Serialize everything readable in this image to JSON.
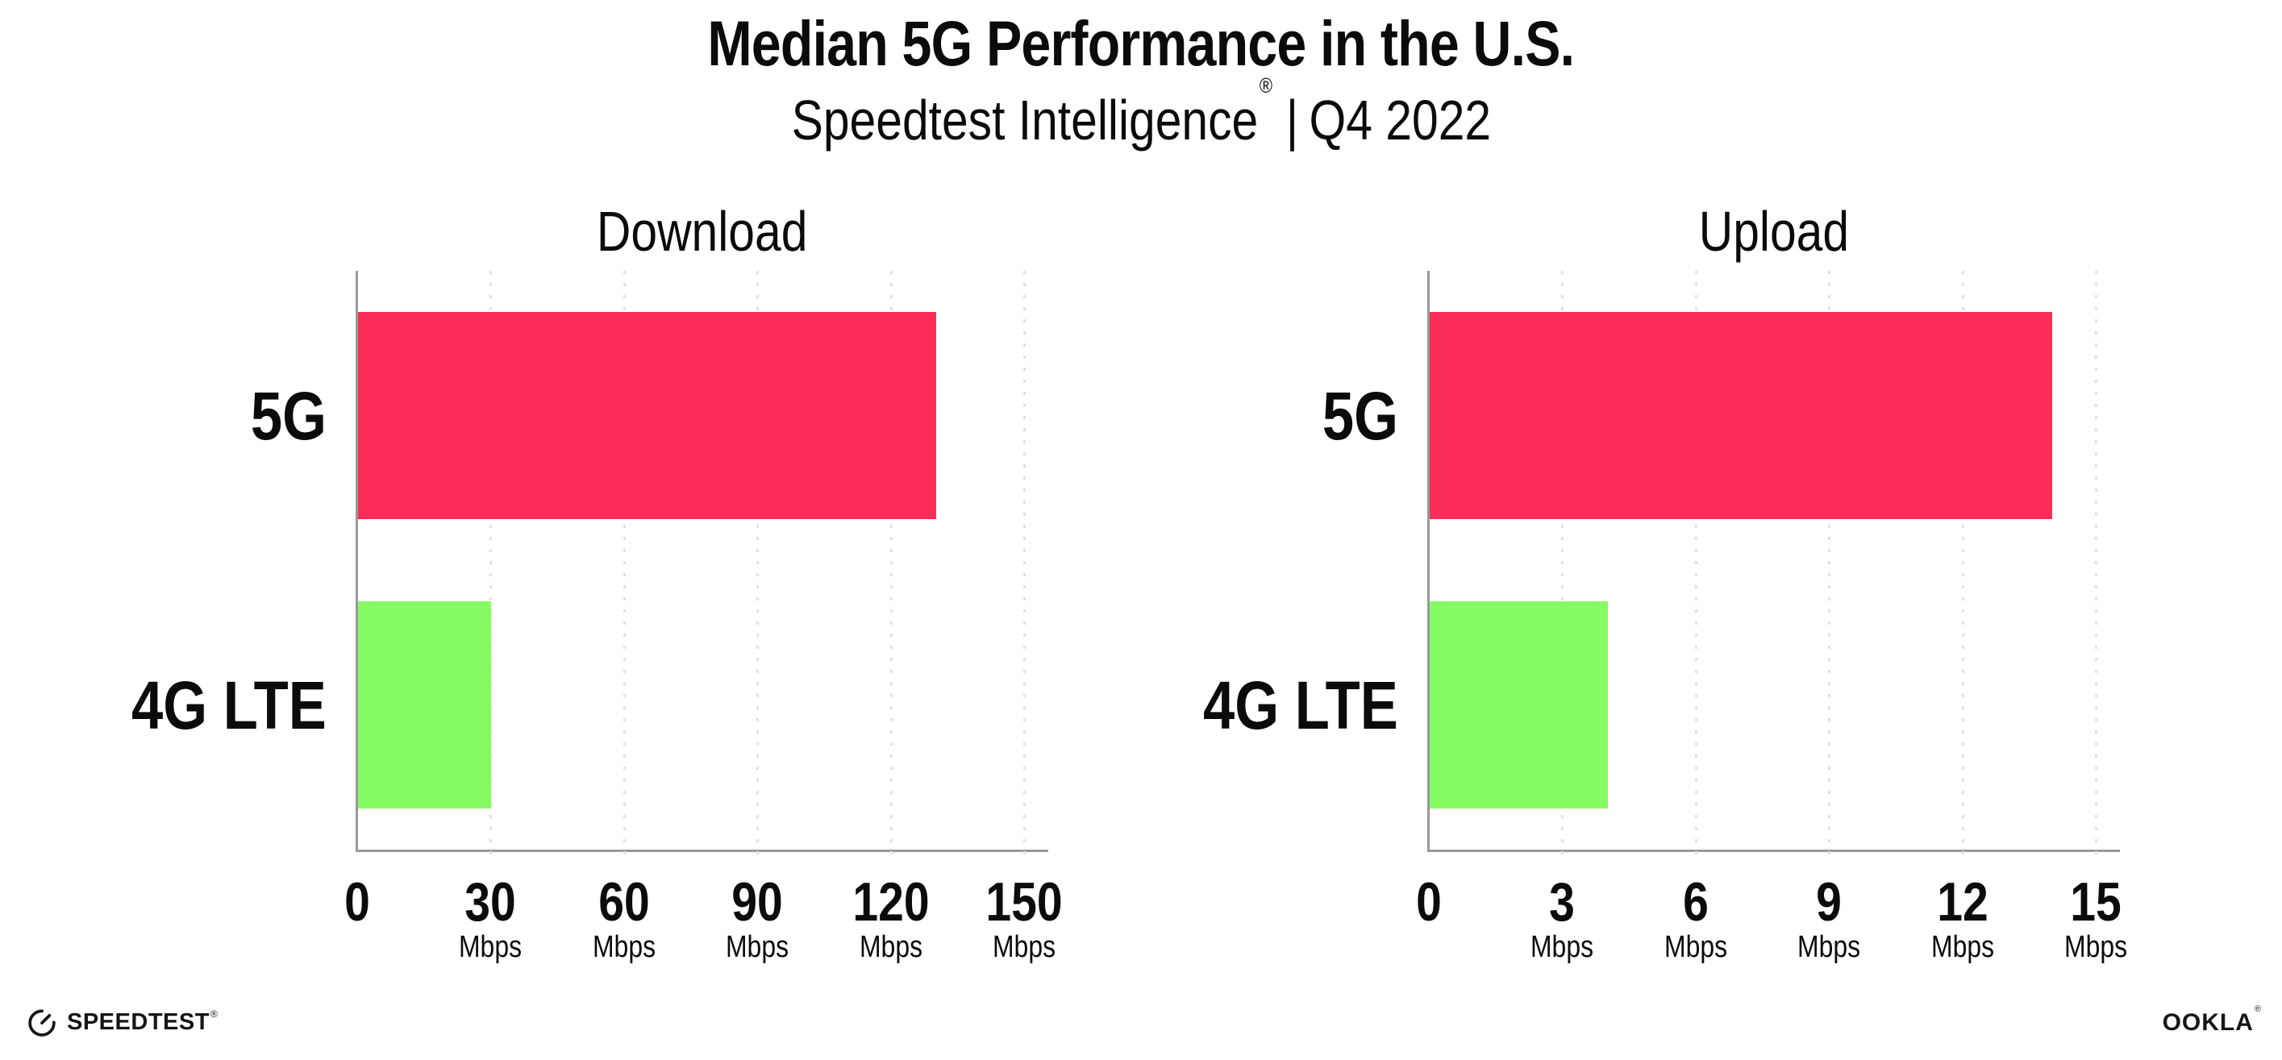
{
  "header": {
    "title": "Median 5G Performance in the U.S.",
    "subtitle": {
      "brand": "Speedtest Intelligence",
      "registered_mark": "®",
      "divider": "|",
      "period": "Q4 2022"
    }
  },
  "colors": {
    "bar_5g": "#FC2E57",
    "bar_4g_lte": "#85FC62",
    "axis_line": "#98989D",
    "gridline_dots": "#DFDFEC",
    "text": "#0B0B0B",
    "background": "#FFFFFF"
  },
  "chart_data": [
    {
      "type": "bar",
      "orientation": "horizontal",
      "title": "Download",
      "categories": [
        "5G",
        "4G LTE"
      ],
      "values": [
        130,
        30
      ],
      "unit": "Mbps",
      "xlim": [
        0,
        150
      ],
      "xticks": [
        0,
        30,
        60,
        90,
        120,
        150
      ],
      "xtick_unit": "Mbps",
      "grid": "vertical-dotted",
      "legend": "none",
      "bar_colors": [
        "#FC2E57",
        "#85FC62"
      ]
    },
    {
      "type": "bar",
      "orientation": "horizontal",
      "title": "Upload",
      "categories": [
        "5G",
        "4G LTE"
      ],
      "values": [
        14,
        4
      ],
      "unit": "Mbps",
      "xlim": [
        0,
        15
      ],
      "xticks": [
        0,
        3,
        6,
        9,
        12,
        15
      ],
      "xtick_unit": "Mbps",
      "grid": "vertical-dotted",
      "legend": "none",
      "bar_colors": [
        "#FC2E57",
        "#85FC62"
      ]
    }
  ],
  "footer": {
    "speedtest_wordmark": "SPEEDTEST",
    "speedtest_mark": "®",
    "ookla_wordmark": "OOKLA",
    "ookla_mark": "®"
  }
}
